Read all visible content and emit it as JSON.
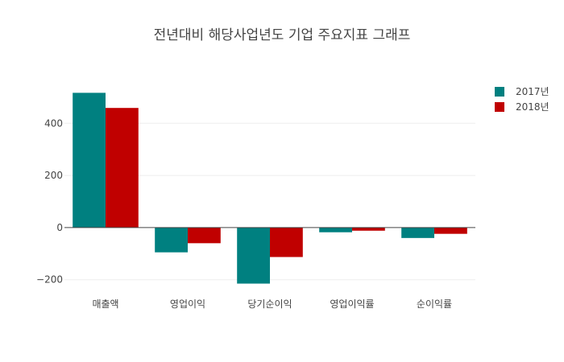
{
  "chart_data": {
    "type": "bar",
    "title": "전년대비 해당사업년도 기업 주요지표 그래프",
    "xlabel": "",
    "ylabel": "",
    "categories": [
      "매출액",
      "영업이익",
      "당기순이익",
      "영업이익률",
      "순이익률"
    ],
    "series": [
      {
        "name": "2017년",
        "color": "#008080",
        "values": [
          517,
          -95,
          -215,
          -18,
          -40
        ]
      },
      {
        "name": "2018년",
        "color": "#c00000",
        "values": [
          459,
          -60,
          -113,
          -12,
          -24
        ]
      }
    ],
    "ylim": [
      -238,
      583
    ],
    "yticks": [
      -200,
      0,
      200,
      400
    ],
    "ytick_labels": [
      "−200",
      "0",
      "200",
      "400"
    ],
    "grid": true,
    "legend_position": "top-right"
  }
}
